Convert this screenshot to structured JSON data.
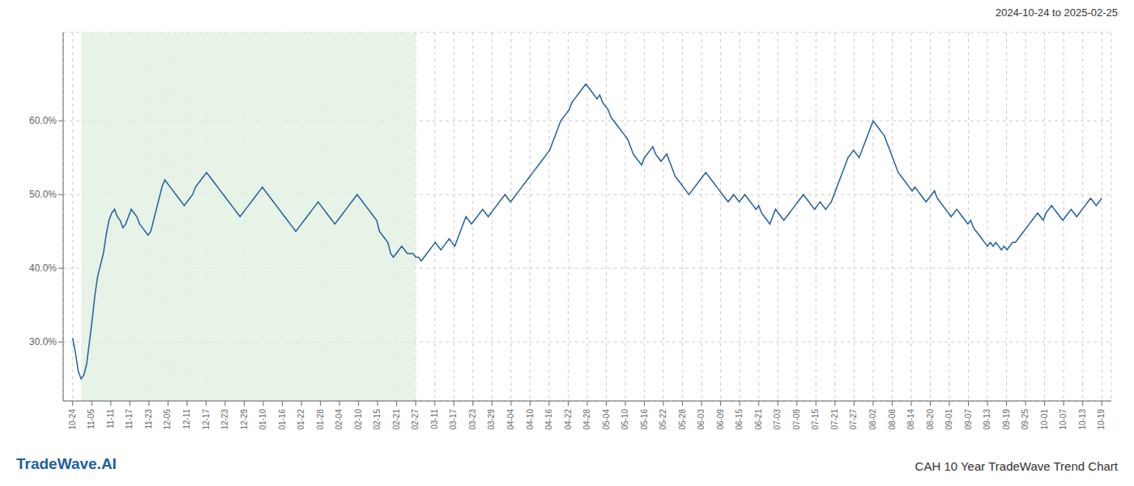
{
  "chart_data": {
    "type": "line",
    "title": "CAH 10 Year TradeWave Trend Chart",
    "subtitle": "2024-10-24 to 2025-02-25",
    "annotations": [
      "TradeWave.AI"
    ],
    "color": "#2060a0",
    "grid": true,
    "xlim": [
      -0.5,
      54.5
    ],
    "xticks": [
      {
        "value": 0,
        "label": "10-24"
      },
      {
        "value": 1,
        "label": "11-05"
      },
      {
        "value": 2,
        "label": "11-11"
      },
      {
        "value": 3,
        "label": "11-17"
      },
      {
        "value": 4,
        "label": "11-23"
      },
      {
        "value": 5,
        "label": "12-05"
      },
      {
        "value": 6,
        "label": "12-11"
      },
      {
        "value": 7,
        "label": "12-17"
      },
      {
        "value": 8,
        "label": "12-23"
      },
      {
        "value": 9,
        "label": "12-29"
      },
      {
        "value": 10,
        "label": "01-10"
      },
      {
        "value": 11,
        "label": "01-16"
      },
      {
        "value": 12,
        "label": "01-22"
      },
      {
        "value": 13,
        "label": "01-28"
      },
      {
        "value": 14,
        "label": "02-04"
      },
      {
        "value": 15,
        "label": "02-10"
      },
      {
        "value": 16,
        "label": "02-15"
      },
      {
        "value": 17,
        "label": "02-21"
      },
      {
        "value": 18,
        "label": "02-27"
      },
      {
        "value": 19,
        "label": "03-11"
      },
      {
        "value": 20,
        "label": "03-17"
      },
      {
        "value": 21,
        "label": "03-23"
      },
      {
        "value": 22,
        "label": "03-29"
      },
      {
        "value": 23,
        "label": "04-04"
      },
      {
        "value": 24,
        "label": "04-10"
      },
      {
        "value": 25,
        "label": "04-16"
      },
      {
        "value": 26,
        "label": "04-22"
      },
      {
        "value": 27,
        "label": "04-28"
      },
      {
        "value": 28,
        "label": "05-04"
      },
      {
        "value": 29,
        "label": "05-10"
      },
      {
        "value": 30,
        "label": "05-16"
      },
      {
        "value": 31,
        "label": "05-22"
      },
      {
        "value": 32,
        "label": "05-28"
      },
      {
        "value": 33,
        "label": "06-03"
      },
      {
        "value": 34,
        "label": "06-09"
      },
      {
        "value": 35,
        "label": "06-15"
      },
      {
        "value": 36,
        "label": "06-21"
      },
      {
        "value": 37,
        "label": "07-03"
      },
      {
        "value": 38,
        "label": "07-09"
      },
      {
        "value": 39,
        "label": "07-15"
      },
      {
        "value": 40,
        "label": "07-21"
      },
      {
        "value": 41,
        "label": "07-27"
      },
      {
        "value": 42,
        "label": "08-02"
      },
      {
        "value": 43,
        "label": "08-08"
      },
      {
        "value": 44,
        "label": "08-14"
      },
      {
        "value": 45,
        "label": "08-20"
      },
      {
        "value": 46,
        "label": "09-01"
      },
      {
        "value": 47,
        "label": "09-07"
      },
      {
        "value": 48,
        "label": "09-13"
      },
      {
        "value": 49,
        "label": "09-19"
      },
      {
        "value": 50,
        "label": "09-25"
      },
      {
        "value": 51,
        "label": "10-01"
      },
      {
        "value": 52,
        "label": "10-07"
      },
      {
        "value": 53,
        "label": "10-13"
      },
      {
        "value": 54,
        "label": "10-19"
      }
    ],
    "ylim": [
      22,
      72
    ],
    "yticks": [
      {
        "value": 30.0,
        "label": "30.0%"
      },
      {
        "value": 40.0,
        "label": "40.0%"
      },
      {
        "value": 50.0,
        "label": "50.0%"
      },
      {
        "value": 60.0,
        "label": "60.0%"
      }
    ],
    "shaded": {
      "x": [
        0.45,
        18.0
      ],
      "color": "#e0f0e0"
    },
    "values": [
      30.5,
      28.5,
      26.0,
      25.0,
      25.5,
      27.0,
      30.0,
      33.0,
      36.5,
      39.0,
      40.5,
      42.0,
      44.5,
      46.5,
      47.5,
      48.0,
      47.0,
      46.5,
      45.5,
      46.0,
      47.0,
      48.0,
      47.5,
      47.0,
      46.0,
      45.5,
      45.0,
      44.5,
      45.0,
      46.5,
      48.0,
      49.5,
      51.0,
      52.0,
      51.5,
      51.0,
      50.5,
      50.0,
      49.5,
      49.0,
      48.5,
      49.0,
      49.5,
      50.0,
      51.0,
      51.5,
      52.0,
      52.5,
      53.0,
      52.5,
      52.0,
      51.5,
      51.0,
      50.5,
      50.0,
      49.5,
      49.0,
      48.5,
      48.0,
      47.5,
      47.0,
      47.5,
      48.0,
      48.5,
      49.0,
      49.5,
      50.0,
      50.5,
      51.0,
      50.5,
      50.0,
      49.5,
      49.0,
      48.5,
      48.0,
      47.5,
      47.0,
      46.5,
      46.0,
      45.5,
      45.0,
      45.5,
      46.0,
      46.5,
      47.0,
      47.5,
      48.0,
      48.5,
      49.0,
      48.5,
      48.0,
      47.5,
      47.0,
      46.5,
      46.0,
      46.5,
      47.0,
      47.5,
      48.0,
      48.5,
      49.0,
      49.5,
      50.0,
      49.5,
      49.0,
      48.5,
      48.0,
      47.5,
      47.0,
      46.5,
      45.0,
      44.5,
      44.0,
      43.5,
      42.0,
      41.5,
      42.0,
      42.5,
      43.0,
      42.5,
      42.0,
      42.0,
      42.0,
      41.5,
      41.5,
      41.0,
      41.5,
      42.0,
      42.5,
      43.0,
      43.5,
      43.0,
      42.5,
      43.0,
      43.5,
      44.0,
      43.5,
      43.0,
      44.0,
      45.0,
      46.0,
      47.0,
      46.5,
      46.0,
      46.5,
      47.0,
      47.5,
      48.0,
      47.5,
      47.0,
      47.5,
      48.0,
      48.5,
      49.0,
      49.5,
      50.0,
      49.5,
      49.0,
      49.5,
      50.0,
      50.5,
      51.0,
      51.5,
      52.0,
      52.5,
      53.0,
      53.5,
      54.0,
      54.5,
      55.0,
      55.5,
      56.0,
      57.0,
      58.0,
      59.0,
      60.0,
      60.5,
      61.0,
      61.5,
      62.5,
      63.0,
      63.5,
      64.0,
      64.5,
      65.0,
      64.5,
      64.0,
      63.5,
      63.0,
      63.5,
      62.5,
      62.0,
      61.5,
      60.5,
      60.0,
      59.5,
      59.0,
      58.5,
      58.0,
      57.5,
      56.5,
      55.5,
      55.0,
      54.5,
      54.0,
      55.0,
      55.5,
      56.0,
      56.5,
      55.5,
      55.0,
      54.5,
      55.0,
      55.5,
      54.5,
      53.5,
      52.5,
      52.0,
      51.5,
      51.0,
      50.5,
      50.0,
      50.5,
      51.0,
      51.5,
      52.0,
      52.5,
      53.0,
      52.5,
      52.0,
      51.5,
      51.0,
      50.5,
      50.0,
      49.5,
      49.0,
      49.5,
      50.0,
      49.5,
      49.0,
      49.5,
      50.0,
      49.5,
      49.0,
      48.5,
      48.0,
      48.5,
      47.5,
      47.0,
      46.5,
      46.0,
      47.0,
      48.0,
      47.5,
      47.0,
      46.5,
      47.0,
      47.5,
      48.0,
      48.5,
      49.0,
      49.5,
      50.0,
      49.5,
      49.0,
      48.5,
      48.0,
      48.5,
      49.0,
      48.5,
      48.0,
      48.5,
      49.0,
      50.0,
      51.0,
      52.0,
      53.0,
      54.0,
      55.0,
      55.5,
      56.0,
      55.5,
      55.0,
      56.0,
      57.0,
      58.0,
      59.0,
      60.0,
      59.5,
      59.0,
      58.5,
      58.0,
      57.0,
      56.0,
      55.0,
      54.0,
      53.0,
      52.5,
      52.0,
      51.5,
      51.0,
      50.5,
      51.0,
      50.5,
      50.0,
      49.5,
      49.0,
      49.5,
      50.0,
      50.5,
      49.5,
      49.0,
      48.5,
      48.0,
      47.5,
      47.0,
      47.5,
      48.0,
      47.5,
      47.0,
      46.5,
      46.0,
      46.5,
      45.5,
      45.0,
      44.5,
      44.0,
      43.5,
      43.0,
      43.5,
      43.0,
      43.5,
      43.0,
      42.5,
      43.0,
      42.5,
      43.0,
      43.5,
      43.5,
      44.0,
      44.5,
      45.0,
      45.5,
      46.0,
      46.5,
      47.0,
      47.5,
      47.0,
      46.5,
      47.5,
      48.0,
      48.5,
      48.0,
      47.5,
      47.0,
      46.5,
      47.0,
      47.5,
      48.0,
      47.5,
      47.0,
      47.5,
      48.0,
      48.5,
      49.0,
      49.5,
      49.0,
      48.5,
      49.0,
      49.5
    ]
  }
}
